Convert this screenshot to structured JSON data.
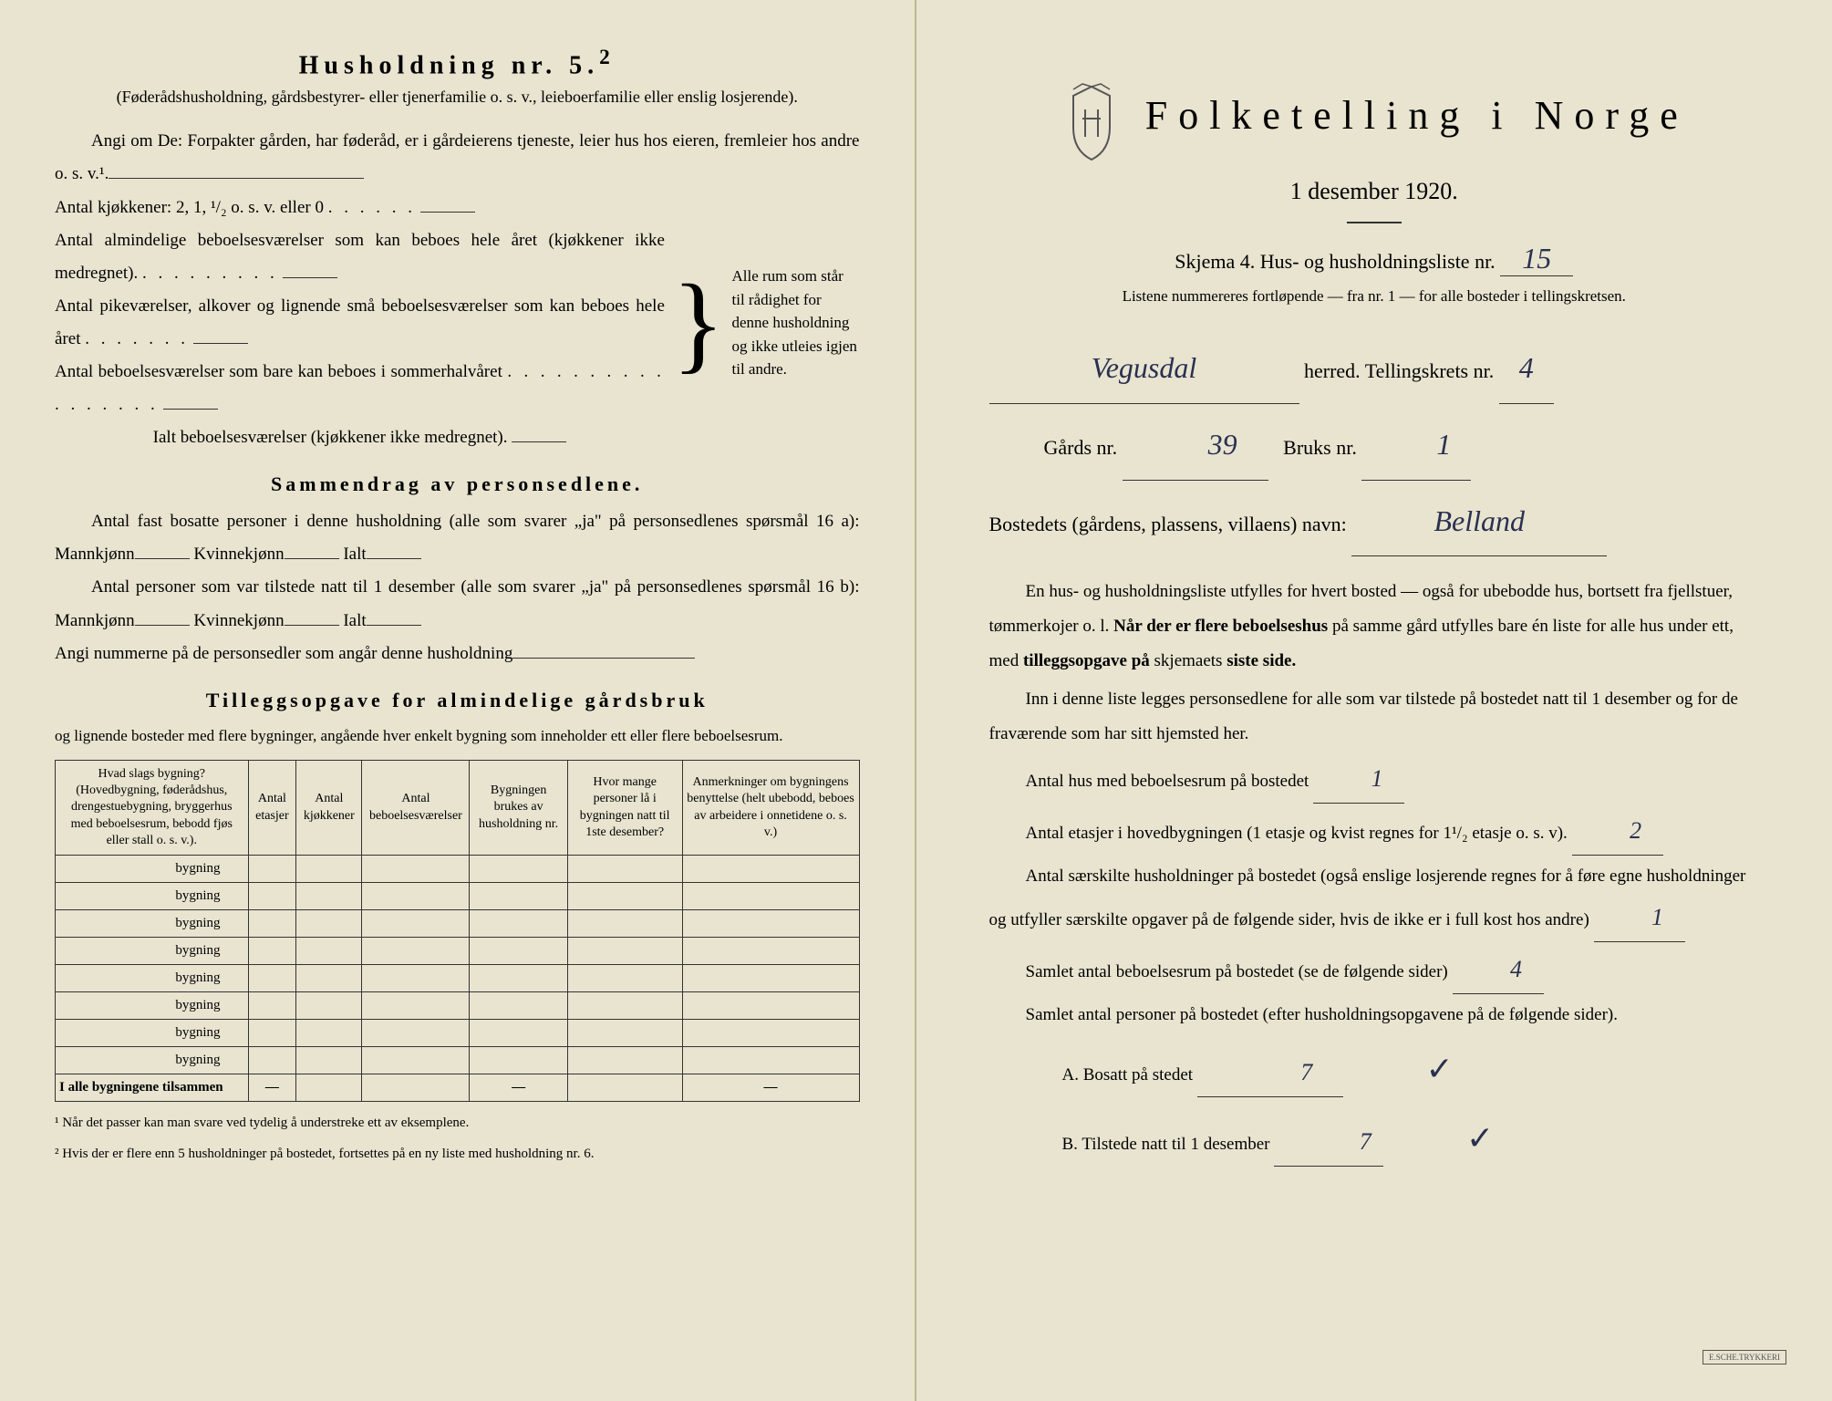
{
  "left": {
    "household_heading": "Husholdning nr. 5.",
    "household_sup": "2",
    "household_sub": "(Føderådshusholdning, gårdsbestyrer- eller tjenerfamilie o. s. v., leieboerfamilie eller enslig losjerende).",
    "angi_line": "Angi om De: Forpakter gården, har føderåd, er i gårdeierens tjeneste, leier hus hos eieren, fremleier hos andre o. s. v.",
    "kitchens_label": "Antal kjøkkener: 2, 1, ¹/₂ o. s. v. eller 0",
    "rooms_1": "Antal almindelige beboelsesværelser som kan beboes hele året (kjøkkener ikke medregnet).",
    "rooms_2": "Antal pikeværelser, alkover og lignende små beboelsesværelser som kan beboes hele året",
    "rooms_3": "Antal beboelsesværelser som bare kan beboes i sommerhalvåret",
    "rooms_total": "Ialt beboelsesværelser (kjøkkener ikke medregnet).",
    "bracket_text": "Alle rum som står til rådighet for denne husholdning og ikke utleies igjen til andre.",
    "summary_heading": "Sammendrag av personsedlene.",
    "summary_1": "Antal fast bosatte personer i denne husholdning (alle som svarer „ja\" på personsedlenes spørsmål 16 a): Mannkjønn",
    "kvinne": "Kvinnekjønn",
    "ialt": "Ialt",
    "summary_2": "Antal personer som var tilstede natt til 1 desember (alle som svarer „ja\" på personsedlenes spørsmål 16 b): Mannkjønn",
    "angi_num": "Angi nummerne på de personsedler som angår denne husholdning",
    "tillegg_heading": "Tilleggsopgave for almindelige gårdsbruk",
    "tillegg_sub": "og lignende bosteder med flere bygninger, angående hver enkelt bygning som inneholder ett eller flere beboelsesrum.",
    "table": {
      "col1": "Hvad slags bygning?\n(Hovedbygning, føderådshus, drengestuebygning, bryggerhus med beboelsesrum, bebodd fjøs eller stall o. s. v.).",
      "col2": "Antal etasjer",
      "col3": "Antal kjøkkener",
      "col4": "Antal beboelsesværelser",
      "col5": "Bygningen brukes av husholdning nr.",
      "col6": "Hvor mange personer lå i bygningen natt til 1ste desember?",
      "col7": "Anmerkninger om bygningens benyttelse (helt ubebodd, beboes av arbeidere i onnetidene o. s. v.)",
      "building_label": "bygning",
      "total_label": "I alle bygningene tilsammen"
    },
    "footnote_1": "¹ Når det passer kan man svare ved tydelig å understreke ett av eksemplene.",
    "footnote_2": "² Hvis der er flere enn 5 husholdninger på bostedet, fortsettes på en ny liste med husholdning nr. 6."
  },
  "right": {
    "title": "Folketelling i Norge",
    "date": "1 desember 1920.",
    "skjema": "Skjema 4.   Hus- og husholdningsliste nr.",
    "liste_nr": "15",
    "liste_note": "Listene nummereres fortløpende — fra nr. 1 — for alle bosteder i tellingskretsen.",
    "herred_value": "Vegusdal",
    "herred_label": "herred.   Tellingskrets nr.",
    "krets_nr": "4",
    "gards_label": "Gårds nr.",
    "gards_nr": "39",
    "bruks_label": "Bruks nr.",
    "bruks_nr": "1",
    "bosted_label": "Bostedets (gårdens, plassens, villaens) navn:",
    "bosted_value": "Belland",
    "para_1": "En hus- og husholdningsliste utfylles for hvert bosted — også for ubebodde hus, bortsett fra fjellstuer, tømmerkojer o. l.  Når der er flere beboelseshus på samme gård utfylles bare én liste for alle hus under ett, med tilleggsopgave på skjemaets siste side.",
    "para_2": "Inn i denne liste legges personsedlene for alle som var tilstede på bostedet natt til 1 desember og for de fraværende som har sitt hjemsted her.",
    "antal_hus_label": "Antal hus med beboelsesrum på bostedet",
    "antal_hus": "1",
    "etasjer_label": "Antal etasjer i hovedbygningen (1 etasje og kvist regnes for 1¹/₂ etasje o. s. v).",
    "etasjer": "2",
    "saerskilt_label": "Antal særskilte husholdninger på bostedet (også enslige losjerende regnes for å føre egne husholdninger og utfyller særskilte opgaver på de følgende sider, hvis de ikke er i full kost hos andre)",
    "saerskilt": "1",
    "samlet_rum_label": "Samlet antal beboelsesrum på bostedet (se de følgende sider)",
    "samlet_rum": "4",
    "samlet_pers_label": "Samlet antal personer på bostedet (efter husholdningsopgavene på de følgende sider).",
    "bosatt_label": "A.  Bosatt på stedet",
    "bosatt": "7",
    "tilstede_label": "B.  Tilstede natt til 1 desember",
    "tilstede": "7"
  },
  "colors": {
    "paper": "#e8e4d0",
    "ink": "#2a2a2a",
    "handwriting": "#2a3050"
  }
}
